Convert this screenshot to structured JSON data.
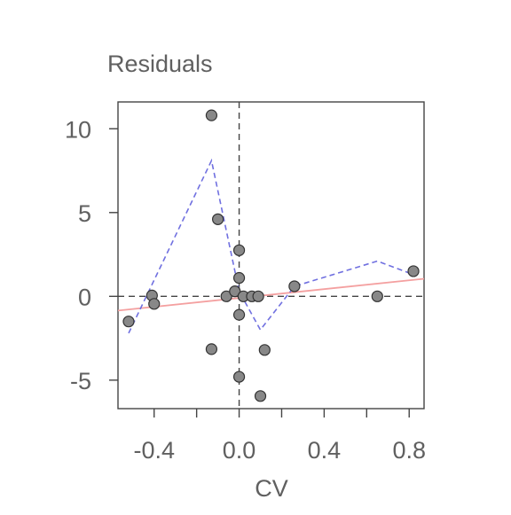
{
  "chart_data": {
    "type": "scatter",
    "title": "Residuals",
    "xlabel": "CV",
    "ylabel": "",
    "xlim": [
      -0.57,
      0.87
    ],
    "ylim": [
      -6.7,
      11.6
    ],
    "x_ticks": [
      -0.4,
      -0.2,
      0.0,
      0.2,
      0.4,
      0.6,
      0.8
    ],
    "x_tick_labels": [
      "-0.4",
      "",
      "0.0",
      "",
      "0.4",
      "",
      "0.8"
    ],
    "y_ticks": [
      -5,
      0,
      5,
      10
    ],
    "y_tick_labels": [
      "-5",
      "0",
      "5",
      "10"
    ],
    "grid": false,
    "points": [
      {
        "x": -0.52,
        "y": -1.5
      },
      {
        "x": -0.41,
        "y": 0.05
      },
      {
        "x": -0.4,
        "y": -0.45
      },
      {
        "x": -0.13,
        "y": 10.8
      },
      {
        "x": -0.13,
        "y": -3.15
      },
      {
        "x": -0.1,
        "y": 4.6
      },
      {
        "x": -0.06,
        "y": 0.0
      },
      {
        "x": -0.02,
        "y": 0.3
      },
      {
        "x": 0.0,
        "y": 2.75
      },
      {
        "x": 0.0,
        "y": 1.1
      },
      {
        "x": 0.0,
        "y": -1.1
      },
      {
        "x": 0.0,
        "y": -4.8
      },
      {
        "x": 0.02,
        "y": 0.0
      },
      {
        "x": 0.06,
        "y": 0.0
      },
      {
        "x": 0.09,
        "y": 0.0
      },
      {
        "x": 0.1,
        "y": -5.95
      },
      {
        "x": 0.12,
        "y": -3.2
      },
      {
        "x": 0.26,
        "y": 0.6
      },
      {
        "x": 0.65,
        "y": 0.0
      },
      {
        "x": 0.82,
        "y": 1.5
      }
    ],
    "trend_line": {
      "x": [
        -0.57,
        0.87
      ],
      "y": [
        -0.85,
        1.05
      ],
      "color": "#f4a0a0"
    },
    "smooth_line": {
      "x": [
        -0.52,
        -0.13,
        0.0,
        0.1,
        0.26,
        0.65,
        0.82
      ],
      "y": [
        -2.2,
        8.1,
        0.3,
        -2.0,
        0.6,
        2.1,
        1.3
      ],
      "color": "#7070e0"
    },
    "reference_lines": {
      "x": 0,
      "y": 0
    }
  },
  "colors": {
    "point_fill": "#888888",
    "point_stroke": "#333333",
    "axis": "#444444",
    "reference": "#444444"
  }
}
